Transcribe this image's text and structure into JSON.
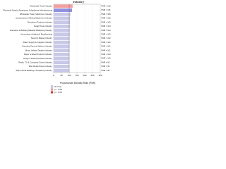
{
  "chart_data": {
    "type": "barh",
    "title": "Industry",
    "x_label": "Proportionate Mortality Ratio (PMR)",
    "categories": [
      "Wholesale Trade Industry",
      "Electrical Supply, Equipment & Appliance Manufacturing",
      "Wholesale Trade, Machinery Industry",
      "Construction & Mining Machinery Industry",
      "Petroleum Products Industry",
      "Retail Trade Industry",
      "Insurance & Building Material Marketing Industry",
      "Accounting, Auditing & Bookkeeping",
      "Security Market Industry",
      "Water Supply & Irrigation Industry",
      "Gasoline Service Stations Industry",
      "Motor Vehicle Dealers Industry",
      "Paper & Allied Products Industry",
      "Drugs & Pharmaceutical Industry",
      "Radio, TV & Computer Stores Industry",
      "Misc Retail Stores Industry",
      "Ship & Boat Building & Repairing Industry"
    ],
    "values": [
      122,
      118,
      108,
      106,
      105,
      104,
      103,
      103,
      102,
      102,
      101,
      101,
      100,
      100,
      99,
      99,
      98
    ],
    "value_labels": [
      "PMR = 122",
      "PMR = 118",
      "PMR = 108",
      "PMR = 106",
      "PMR = 105",
      "PMR = 104",
      "PMR = 103",
      "PMR = 103",
      "PMR = 102",
      "PMR = 102",
      "PMR = 101",
      "PMR = 101",
      "PMR = 100",
      "PMR = 100",
      "PMR = 99",
      "PMR = 99",
      "PMR = 98"
    ],
    "colors": [
      "#f4a0a0",
      "#9090e0",
      "#c8c8e8",
      "#c8c8e8",
      "#c8c8e8",
      "#c8c8e8",
      "#c8c8e8",
      "#c8c8e8",
      "#c8c8e8",
      "#c8c8e8",
      "#c8c8e8",
      "#c8c8e8",
      "#c8c8e8",
      "#c8c8e8",
      "#c8c8e8",
      "#c8c8e8",
      "#c8c8e8"
    ],
    "xlim": [
      0,
      300
    ],
    "xticks": [
      0,
      50,
      100,
      150,
      200,
      250,
      300
    ],
    "reference_line": 100,
    "legend": [
      {
        "name": "Normal",
        "color": "#c8c8e8"
      },
      {
        "name": "p < 0.05",
        "color": "#f4a0a0"
      },
      {
        "name": "p < 0.01",
        "color": "#e03030"
      }
    ]
  }
}
